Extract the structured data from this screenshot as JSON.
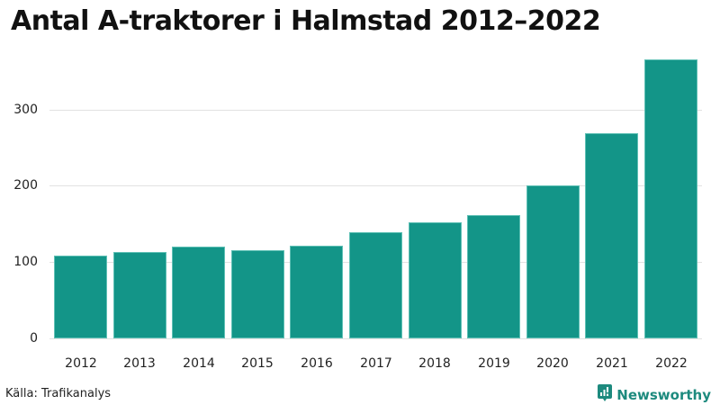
{
  "title": "Antal A-traktorer i Halmstad 2012–2022",
  "source": "Källa: Trafikanalys",
  "brand": {
    "name": "Newsworthy",
    "icon": "bar-chart-speech-bubble-icon",
    "color": "#1d8a7e"
  },
  "colors": {
    "bar": "#139588",
    "grid": "#e2e2e2"
  },
  "chart_data": {
    "type": "bar",
    "title": "Antal A-traktorer i Halmstad 2012–2022",
    "xlabel": "",
    "ylabel": "",
    "categories": [
      "2012",
      "2013",
      "2014",
      "2015",
      "2016",
      "2017",
      "2018",
      "2019",
      "2020",
      "2021",
      "2022"
    ],
    "values": [
      108,
      113,
      120,
      115,
      122,
      139,
      152,
      162,
      200,
      269,
      365
    ],
    "yticks": [
      0,
      100,
      200,
      300
    ],
    "ylim": [
      0,
      380
    ],
    "grid": true,
    "legend": null
  },
  "yticks": [
    "0",
    "100",
    "200",
    "300"
  ],
  "xticks": [
    "2012",
    "2013",
    "2014",
    "2015",
    "2016",
    "2017",
    "2018",
    "2019",
    "2020",
    "2021",
    "2022"
  ]
}
